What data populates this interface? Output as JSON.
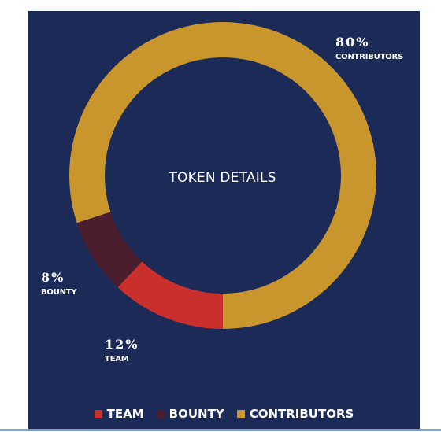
{
  "chart_data": {
    "type": "pie",
    "donut": true,
    "title": "TOKEN DETAILS",
    "categories": [
      "TEAM",
      "BOUNTY",
      "CONTRIBUTORS"
    ],
    "values": [
      12,
      8,
      80
    ],
    "value_labels": [
      "12%",
      "8%",
      "80%"
    ],
    "colors": [
      "#c9302c",
      "#4a1e2c",
      "#c9962d"
    ],
    "legend_position": "bottom",
    "background": "#1b2a57"
  }
}
